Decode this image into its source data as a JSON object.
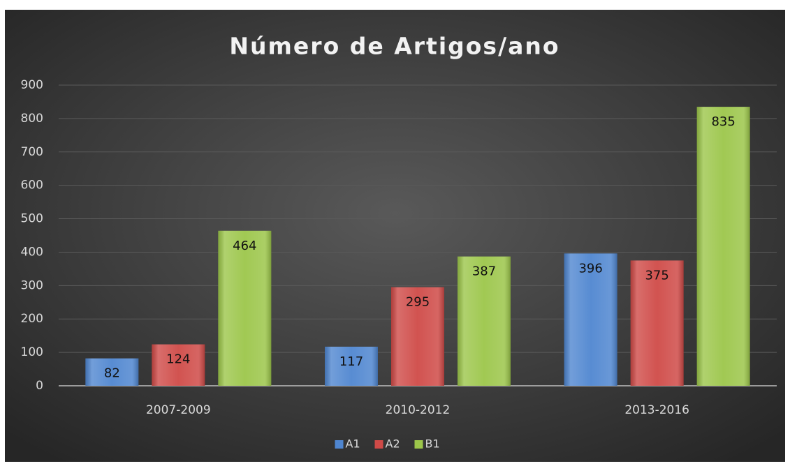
{
  "chart_data": {
    "type": "bar",
    "title": "Número de Artigos/ano",
    "categories": [
      "2007-2009",
      "2010-2012",
      "2013-2016"
    ],
    "series": [
      {
        "name": "A1",
        "color": "#4f86d0",
        "values": [
          82,
          117,
          396
        ]
      },
      {
        "name": "A2",
        "color": "#cf4a47",
        "values": [
          124,
          295,
          375
        ]
      },
      {
        "name": "B1",
        "color": "#9cc64a",
        "values": [
          464,
          387,
          835
        ]
      }
    ],
    "ylim": [
      0,
      900
    ],
    "yticks": [
      0,
      100,
      200,
      300,
      400,
      500,
      600,
      700,
      800,
      900
    ],
    "grid": true,
    "legend": "bottom"
  }
}
